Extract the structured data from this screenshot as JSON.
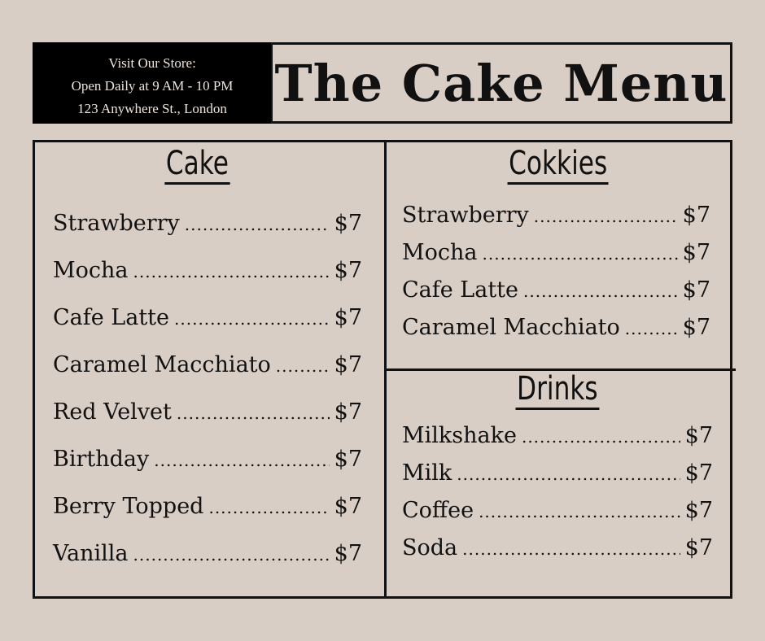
{
  "store": {
    "line1": "Visit Our Store:",
    "line2": "Open Daily at 9 AM - 10 PM",
    "line3": "123 Anywhere St., London"
  },
  "title": "The Cake Menu",
  "sections": {
    "cake": {
      "heading": "Cake",
      "items": [
        {
          "name": "Strawberry",
          "price": "$7"
        },
        {
          "name": "Mocha",
          "price": "$7"
        },
        {
          "name": "Cafe Latte",
          "price": "$7"
        },
        {
          "name": "Caramel Macchiato",
          "price": "$7"
        },
        {
          "name": "Red Velvet",
          "price": "$7"
        },
        {
          "name": "Birthday",
          "price": "$7"
        },
        {
          "name": "Berry Topped",
          "price": "$7"
        },
        {
          "name": "Vanilla",
          "price": "$7"
        }
      ]
    },
    "cookies": {
      "heading": "Cokkies",
      "items": [
        {
          "name": "Strawberry",
          "price": "$7"
        },
        {
          "name": "Mocha",
          "price": "$7"
        },
        {
          "name": "Cafe Latte",
          "price": "$7"
        },
        {
          "name": "Caramel Macchiato",
          "price": "$7"
        }
      ]
    },
    "drinks": {
      "heading": "Drinks",
      "items": [
        {
          "name": "Milkshake",
          "price": "$7"
        },
        {
          "name": "Milk",
          "price": "$7"
        },
        {
          "name": "Coffee",
          "price": "$7"
        },
        {
          "name": "Soda",
          "price": "$7"
        }
      ]
    }
  },
  "colors": {
    "background": "#d9cec6",
    "ink": "#111111",
    "store_bg": "#000000"
  }
}
